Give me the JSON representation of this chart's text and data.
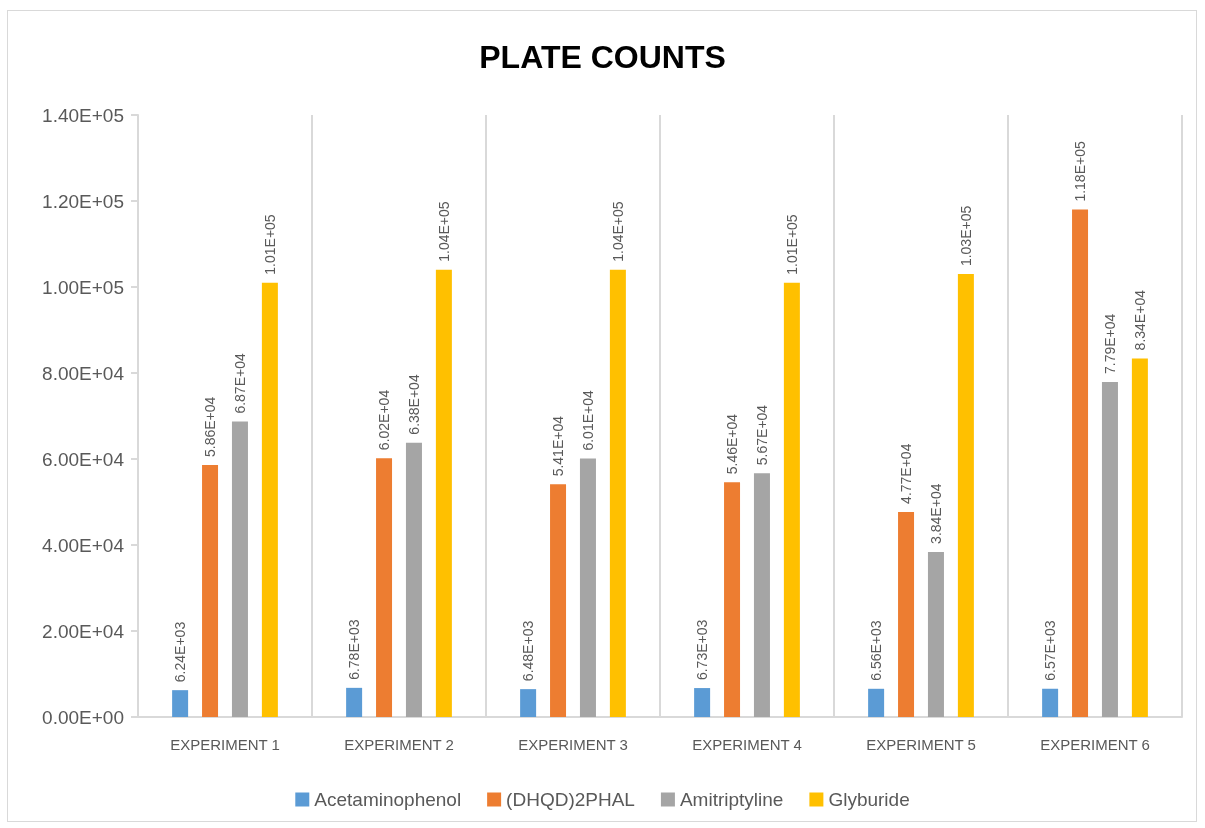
{
  "chart_data": {
    "type": "bar",
    "title": "PLATE COUNTS",
    "categories": [
      "EXPERIMENT 1",
      "EXPERIMENT 2",
      "EXPERIMENT 3",
      "EXPERIMENT 4",
      "EXPERIMENT 5",
      "EXPERIMENT 6"
    ],
    "series": [
      {
        "name": "Acetaminophenol",
        "color": "#5b9bd5",
        "values": [
          6240,
          6780,
          6480,
          6730,
          6560,
          6570
        ],
        "value_labels": [
          "6.24E+03",
          "6.78E+03",
          "6.48E+03",
          "6.73E+03",
          "6.56E+03",
          "6.57E+03"
        ]
      },
      {
        "name": "(DHQD)2PHAL",
        "color": "#ed7d31",
        "values": [
          58600,
          60200,
          54100,
          54600,
          47700,
          118000
        ],
        "value_labels": [
          "5.86E+04",
          "6.02E+04",
          "5.41E+04",
          "5.46E+04",
          "4.77E+04",
          "1.18E+05"
        ]
      },
      {
        "name": "Amitriptyline",
        "color": "#a5a5a5",
        "values": [
          68700,
          63800,
          60100,
          56700,
          38400,
          77900
        ],
        "value_labels": [
          "6.87E+04",
          "6.38E+04",
          "6.01E+04",
          "5.67E+04",
          "3.84E+04",
          "7.79E+04"
        ]
      },
      {
        "name": "Glyburide",
        "color": "#ffc000",
        "values": [
          101000,
          104000,
          104000,
          101000,
          103000,
          83400
        ],
        "value_labels": [
          "1.01E+05",
          "1.04E+05",
          "1.04E+05",
          "1.01E+05",
          "1.03E+05",
          "8.34E+04"
        ]
      }
    ],
    "ylim": [
      0,
      140000
    ],
    "yticks": [
      {
        "value": 0,
        "label": "0.00E+00"
      },
      {
        "value": 20000,
        "label": "2.00E+04"
      },
      {
        "value": 40000,
        "label": "4.00E+04"
      },
      {
        "value": 60000,
        "label": "6.00E+04"
      },
      {
        "value": 80000,
        "label": "8.00E+04"
      },
      {
        "value": 100000,
        "label": "1.00E+05"
      },
      {
        "value": 120000,
        "label": "1.20E+05"
      },
      {
        "value": 140000,
        "label": "1.40E+05"
      }
    ],
    "grid": "x",
    "legend": "bottom"
  }
}
